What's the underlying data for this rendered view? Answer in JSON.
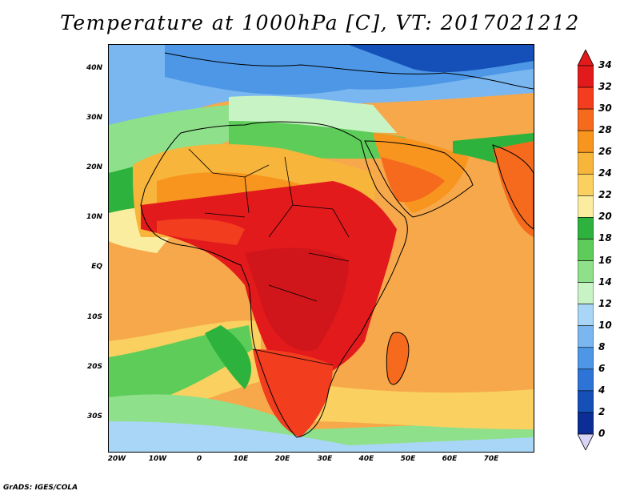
{
  "title": "Temperature at 1000hPa [C], VT: 2017021212",
  "credit": "GrADS: IGES/COLA",
  "lat_ticks": [
    "40N",
    "30N",
    "20N",
    "10N",
    "EQ",
    "10S",
    "20S",
    "30S"
  ],
  "lon_ticks": [
    "20W",
    "10W",
    "0",
    "10E",
    "20E",
    "30E",
    "40E",
    "50E",
    "60E",
    "70E"
  ],
  "colorbar": {
    "labels": [
      "34",
      "32",
      "30",
      "28",
      "26",
      "24",
      "22",
      "20",
      "18",
      "16",
      "14",
      "12",
      "10",
      "8",
      "6",
      "4",
      "2",
      "0"
    ],
    "colors": [
      "#e31a1c",
      "#f23d1e",
      "#f66a1e",
      "#f7951f",
      "#f8b53b",
      "#fad160",
      "#fbeda0",
      "#2db33d",
      "#5ecc59",
      "#8fe08a",
      "#c8f3c5",
      "#a9d6f7",
      "#7ab7f0",
      "#4d97e6",
      "#2e74d6",
      "#1450b8",
      "#0d2d96",
      "#0a1476"
    ]
  },
  "map_colors": {
    "ocean_warm": "#f7b24b",
    "ocean_mid": "#fad160",
    "hot": "#e31a1c",
    "very_hot": "#d0161a",
    "warm": "#f56a1e",
    "mild": "#2db33d",
    "cool": "#8fe08a",
    "cold": "#7ab7f0",
    "very_cold": "#1450b8"
  }
}
